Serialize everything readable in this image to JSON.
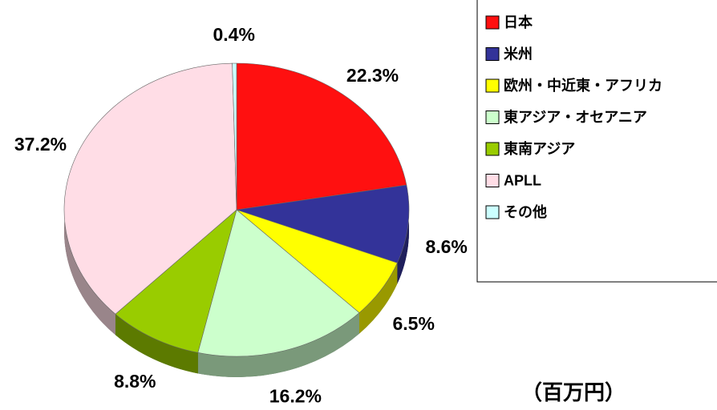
{
  "chart_data": {
    "type": "pie",
    "categories": [
      "日本",
      "米州",
      "欧州・中近東・アフリカ",
      "東アジア・オセアニア",
      "東南アジア",
      "APLL",
      "その他"
    ],
    "values": [
      22.3,
      8.6,
      6.5,
      16.2,
      8.8,
      37.2,
      0.4
    ],
    "value_labels": [
      "22.3%",
      "8.6%",
      "6.5%",
      "16.2%",
      "8.8%",
      "37.2%",
      "0.4%"
    ],
    "colors": [
      "#ff1010",
      "#333399",
      "#ffff00",
      "#ccffcc",
      "#99cc00",
      "#ffdde6",
      "#ccffff"
    ],
    "annotation": "（百万円）",
    "legend": "right"
  }
}
